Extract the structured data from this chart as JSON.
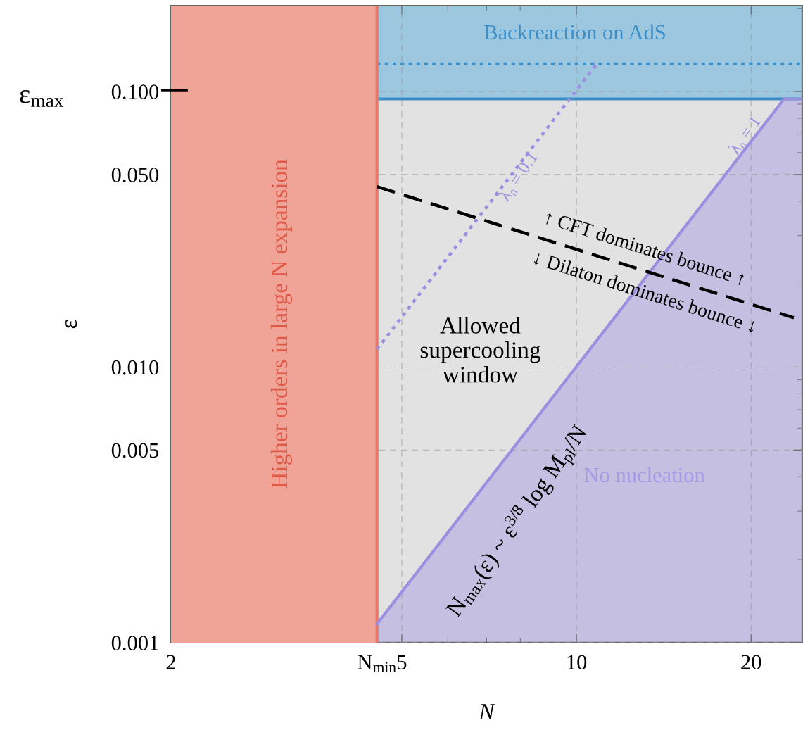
{
  "chart_data": {
    "type": "line",
    "xlabel": "N",
    "ylabel": "ε",
    "log": "xy",
    "grid": true,
    "xlim": [
      2,
      24.5
    ],
    "ylim": [
      0.001,
      0.205
    ],
    "xticks": [
      2,
      {
        "value": 4.53,
        "label": "N$_{min}$"
      },
      5,
      10,
      20
    ],
    "yticks": [
      {
        "value": 0.001,
        "label": "0.001"
      },
      {
        "value": 0.005,
        "label": "0.005"
      },
      {
        "value": 0.01,
        "label": "0.010"
      },
      {
        "value": 0.05,
        "label": "0.050"
      },
      {
        "value": 0.1,
        "label": "0.100"
      }
    ],
    "series": [
      {
        "name": "λ₀ = 0.1",
        "color": "#9b8fe0",
        "line_style": "dotted",
        "x": [
          4.53,
          10.9
        ],
        "values": [
          0.0116,
          0.128
        ]
      },
      {
        "name": "λ₀ = 1",
        "type": "area",
        "color": "#9b8fe0",
        "line_style": "solid",
        "x": [
          4.53,
          22.8,
          24.5
        ],
        "values": [
          0.00117,
          0.094,
          0.094
        ]
      },
      {
        "color": "#000000",
        "line_style": "dashed",
        "x": [
          4.53,
          23.7
        ],
        "values": [
          0.0452,
          0.0151
        ]
      }
    ],
    "bands": [
      {
        "axis": "y",
        "from": 0.001,
        "to": 0.094,
        "label": "Allowed supercooling window",
        "color": "#e2e2e2"
      },
      {
        "axis": "y",
        "from": 0.094,
        "to": 0.205,
        "label": "Backreaction on AdS",
        "color": "#9dc6df"
      },
      {
        "axis": "x",
        "from": 2,
        "to": 4.53,
        "label": "Higher orders in large N expansion",
        "color": "#f0a397"
      }
    ],
    "ref_lines": [
      {
        "axis": "y",
        "value": 0.094,
        "color": "#3b8fc9",
        "line_style": "solid"
      },
      {
        "axis": "x",
        "value": 4.53,
        "color": "#e8776a",
        "line_style": "solid"
      },
      {
        "axis": "y",
        "value": 0.126,
        "color": "#3b8fc9",
        "line_style": "dotted"
      }
    ],
    "annotations": [
      "↑ CFT dominates bounce ↑",
      "↓ Dilaton dominates bounce ↓",
      "N$_{max}$(ε) ~ ε$^{3/8}$ log M$_{pl}$/N",
      "No nucleation",
      "ε$_{max}$"
    ]
  }
}
